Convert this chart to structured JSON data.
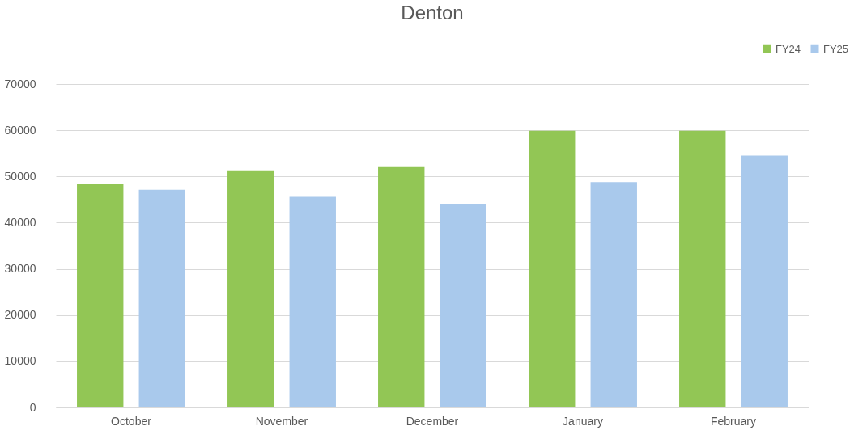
{
  "chart_data": {
    "type": "bar",
    "title": "Denton",
    "categories": [
      "October",
      "November",
      "December",
      "January",
      "February"
    ],
    "series": [
      {
        "name": "FY24",
        "color": "#92c655",
        "values": [
          48300,
          51300,
          52200,
          59900,
          59900
        ]
      },
      {
        "name": "FY25",
        "color": "#a9c9ec",
        "values": [
          47100,
          45600,
          44100,
          48800,
          54500
        ]
      }
    ],
    "ylim": [
      0,
      70000
    ],
    "yticks": [
      0,
      10000,
      20000,
      30000,
      40000,
      50000,
      60000,
      70000
    ],
    "grid": "y",
    "legend": "top right"
  }
}
